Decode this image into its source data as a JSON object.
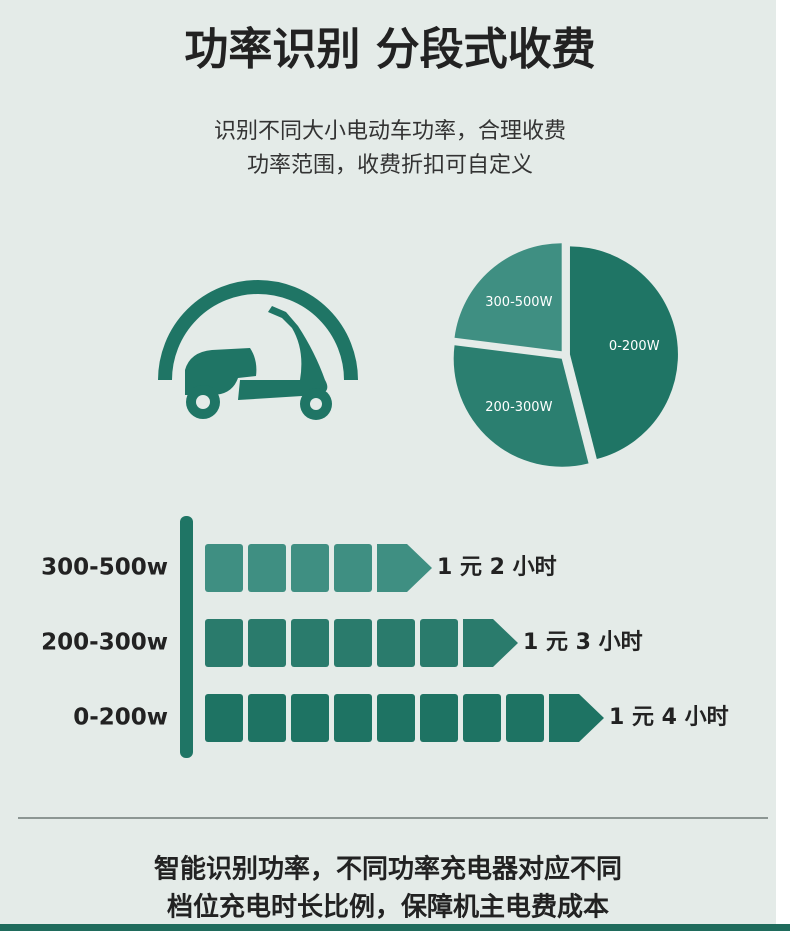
{
  "header": {
    "title": "功率识别 分段式收费",
    "subtitle_lines": [
      "识别不同大小电动车功率，合理收费",
      "功率范围，收费折扣可自定义"
    ]
  },
  "pie": {
    "slices": [
      {
        "label": "0-200W",
        "value": 46,
        "color": "#1f7565"
      },
      {
        "label": "200-300W",
        "value": 31,
        "color": "#2b7f70"
      },
      {
        "label": "300-500W",
        "value": 23,
        "color": "#3f8f82"
      }
    ]
  },
  "rows": [
    {
      "label": "300-500w",
      "blocks": 4,
      "color": "#3f8f82",
      "rate": "1 元 2 小时"
    },
    {
      "label": "200-300w",
      "blocks": 6,
      "color": "#2a7b6c",
      "rate": "1 元 3 小时"
    },
    {
      "label": "0-200w",
      "blocks": 8,
      "color": "#1e7363",
      "rate": "1 元 4 小时"
    }
  ],
  "footer": {
    "lines": [
      "智能识别功率，不同功率充电器对应不同",
      "档位充电时长比例，保障机主电费成本"
    ]
  }
}
